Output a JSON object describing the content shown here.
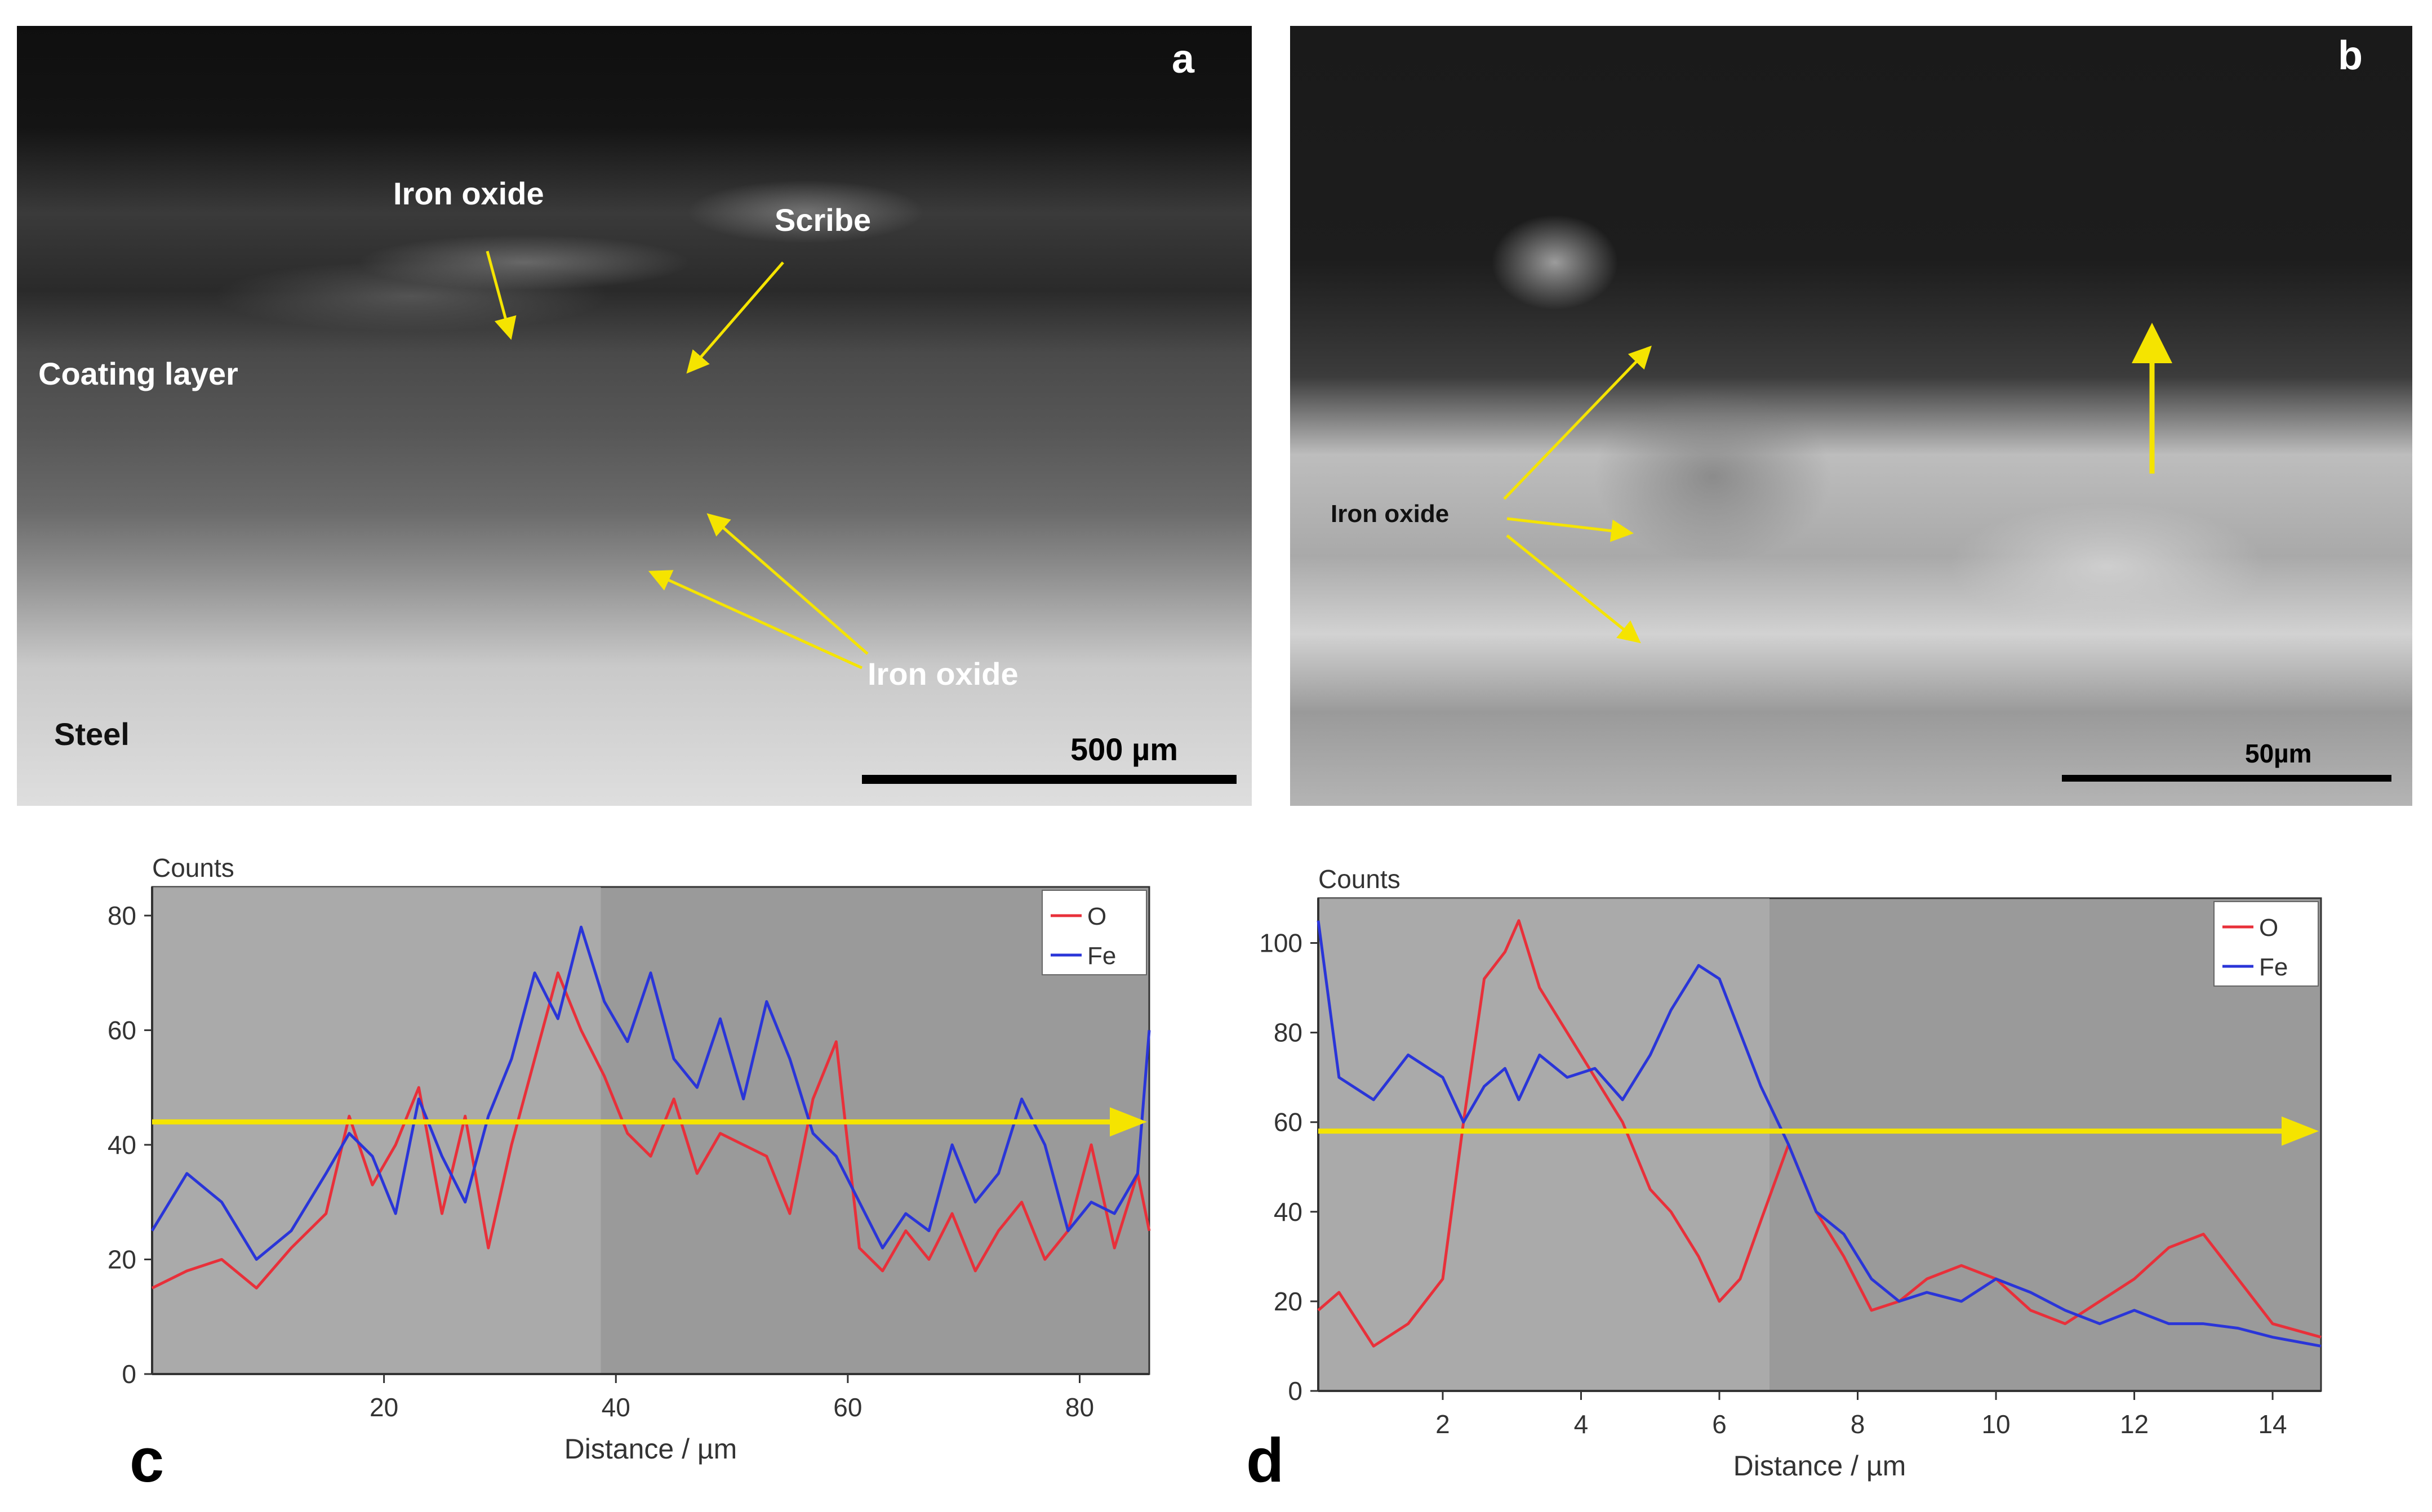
{
  "panels": {
    "a": {
      "letter": "a",
      "labels": {
        "iron_oxide_top": "Iron oxide",
        "scribe": "Scribe",
        "coating_layer": "Coating layer",
        "steel": "Steel",
        "iron_oxide_bottom": "Iron oxide"
      },
      "scale": "500 µm"
    },
    "b": {
      "letter": "b",
      "labels": {
        "iron_oxide": "Iron oxide"
      },
      "scale": "50µm"
    }
  },
  "chart_data": [
    {
      "id": "c",
      "type": "line",
      "letter": "c",
      "ylabel": "Counts",
      "xlabel": "Distance / µm",
      "xlim": [
        0,
        86
      ],
      "ylim": [
        0,
        85
      ],
      "xticks": [
        20,
        40,
        60,
        80
      ],
      "yticks": [
        0,
        20,
        40,
        60,
        80
      ],
      "legend_position": "top-right",
      "arrow_y": 44,
      "series": [
        {
          "name": "O",
          "color": "#e8303a",
          "x": [
            0,
            3,
            6,
            9,
            12,
            15,
            17,
            19,
            21,
            23,
            25,
            27,
            29,
            31,
            33,
            35,
            37,
            39,
            41,
            43,
            45,
            47,
            49,
            51,
            53,
            55,
            57,
            59,
            61,
            63,
            65,
            67,
            69,
            71,
            73,
            75,
            77,
            79,
            81,
            83,
            85,
            86
          ],
          "y": [
            15,
            18,
            20,
            15,
            22,
            28,
            45,
            33,
            40,
            50,
            28,
            45,
            22,
            40,
            55,
            70,
            60,
            52,
            42,
            38,
            48,
            35,
            42,
            40,
            38,
            28,
            48,
            58,
            22,
            18,
            25,
            20,
            28,
            18,
            25,
            30,
            20,
            25,
            40,
            22,
            35,
            25
          ]
        },
        {
          "name": "Fe",
          "color": "#2a35d8",
          "x": [
            0,
            3,
            6,
            9,
            12,
            15,
            17,
            19,
            21,
            23,
            25,
            27,
            29,
            31,
            33,
            35,
            37,
            39,
            41,
            43,
            45,
            47,
            49,
            51,
            53,
            55,
            57,
            59,
            61,
            63,
            65,
            67,
            69,
            71,
            73,
            75,
            77,
            79,
            81,
            83,
            85,
            86
          ],
          "y": [
            25,
            35,
            30,
            20,
            25,
            35,
            42,
            38,
            28,
            48,
            38,
            30,
            45,
            55,
            70,
            62,
            78,
            65,
            58,
            70,
            55,
            50,
            62,
            48,
            65,
            55,
            42,
            38,
            30,
            22,
            28,
            25,
            40,
            30,
            35,
            48,
            40,
            25,
            30,
            28,
            35,
            60
          ]
        }
      ]
    },
    {
      "id": "d",
      "type": "line",
      "letter": "d",
      "ylabel": "Counts",
      "xlabel": "Distance / µm",
      "xlim": [
        0.2,
        14.7
      ],
      "ylim": [
        0,
        110
      ],
      "xticks": [
        2,
        4,
        6,
        8,
        10,
        12,
        14
      ],
      "yticks": [
        0,
        20,
        40,
        60,
        80,
        100
      ],
      "legend_position": "top-right",
      "arrow_y": 58,
      "series": [
        {
          "name": "O",
          "color": "#e8303a",
          "x": [
            0.2,
            0.5,
            1.0,
            1.5,
            2.0,
            2.3,
            2.6,
            2.9,
            3.1,
            3.4,
            3.8,
            4.2,
            4.6,
            5.0,
            5.3,
            5.7,
            6.0,
            6.3,
            6.6,
            7.0,
            7.4,
            7.8,
            8.2,
            8.6,
            9.0,
            9.5,
            10.0,
            10.5,
            11.0,
            11.5,
            12.0,
            12.5,
            13.0,
            13.5,
            14.0,
            14.7
          ],
          "y": [
            18,
            22,
            10,
            15,
            25,
            60,
            92,
            98,
            105,
            90,
            80,
            70,
            60,
            45,
            40,
            30,
            20,
            25,
            38,
            55,
            40,
            30,
            18,
            20,
            25,
            28,
            25,
            18,
            15,
            20,
            25,
            32,
            35,
            25,
            15,
            12
          ]
        },
        {
          "name": "Fe",
          "color": "#2a35d8",
          "x": [
            0.2,
            0.5,
            1.0,
            1.5,
            2.0,
            2.3,
            2.6,
            2.9,
            3.1,
            3.4,
            3.8,
            4.2,
            4.6,
            5.0,
            5.3,
            5.7,
            6.0,
            6.3,
            6.6,
            7.0,
            7.4,
            7.8,
            8.2,
            8.6,
            9.0,
            9.5,
            10.0,
            10.5,
            11.0,
            11.5,
            12.0,
            12.5,
            13.0,
            13.5,
            14.0,
            14.7
          ],
          "y": [
            105,
            70,
            65,
            75,
            70,
            60,
            68,
            72,
            65,
            75,
            70,
            72,
            65,
            75,
            85,
            95,
            92,
            80,
            68,
            55,
            40,
            35,
            25,
            20,
            22,
            20,
            25,
            22,
            18,
            15,
            18,
            15,
            15,
            14,
            12,
            10
          ]
        }
      ]
    }
  ]
}
